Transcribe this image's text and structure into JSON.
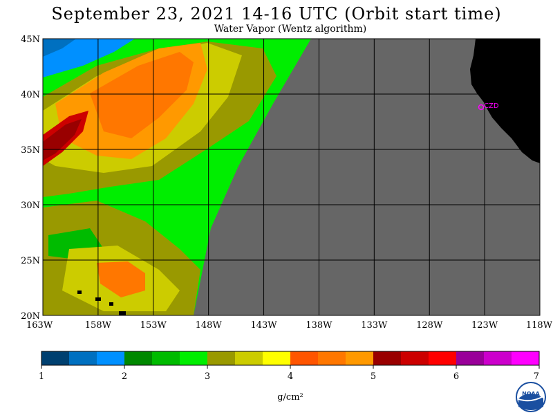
{
  "title": "September 23, 2021  14-16 UTC  (Orbit start time)",
  "subtitle": "Water Vapor (Wentz algorithm)",
  "map": {
    "lat_labels": [
      "45N",
      "40N",
      "35N",
      "30N",
      "25N",
      "20N"
    ],
    "lon_labels": [
      "163W",
      "158W",
      "153W",
      "148W",
      "143W",
      "138W",
      "133W",
      "128W",
      "123W",
      "118W"
    ],
    "lat_range": [
      20,
      45
    ],
    "lon_range": [
      -163,
      -118
    ],
    "station_label": "CZD",
    "colors": {
      "no_data": "#666666",
      "land": "#000000",
      "station": "#ff00ff"
    }
  },
  "colorbar": {
    "unit_label": "g/cm²",
    "tick_labels": [
      "1",
      "2",
      "3",
      "4",
      "5",
      "6",
      "7"
    ],
    "colors": [
      "#004070",
      "#0070c0",
      "#0090ff",
      "#008800",
      "#00bb00",
      "#00ee00",
      "#999900",
      "#cccc00",
      "#ffff00",
      "#ff5500",
      "#ff7700",
      "#ff9900",
      "#990000",
      "#cc0000",
      "#ff0000",
      "#990099",
      "#cc00cc",
      "#ff00ff"
    ]
  },
  "logo": {
    "name": "noaa-logo",
    "text": "NOAA"
  }
}
